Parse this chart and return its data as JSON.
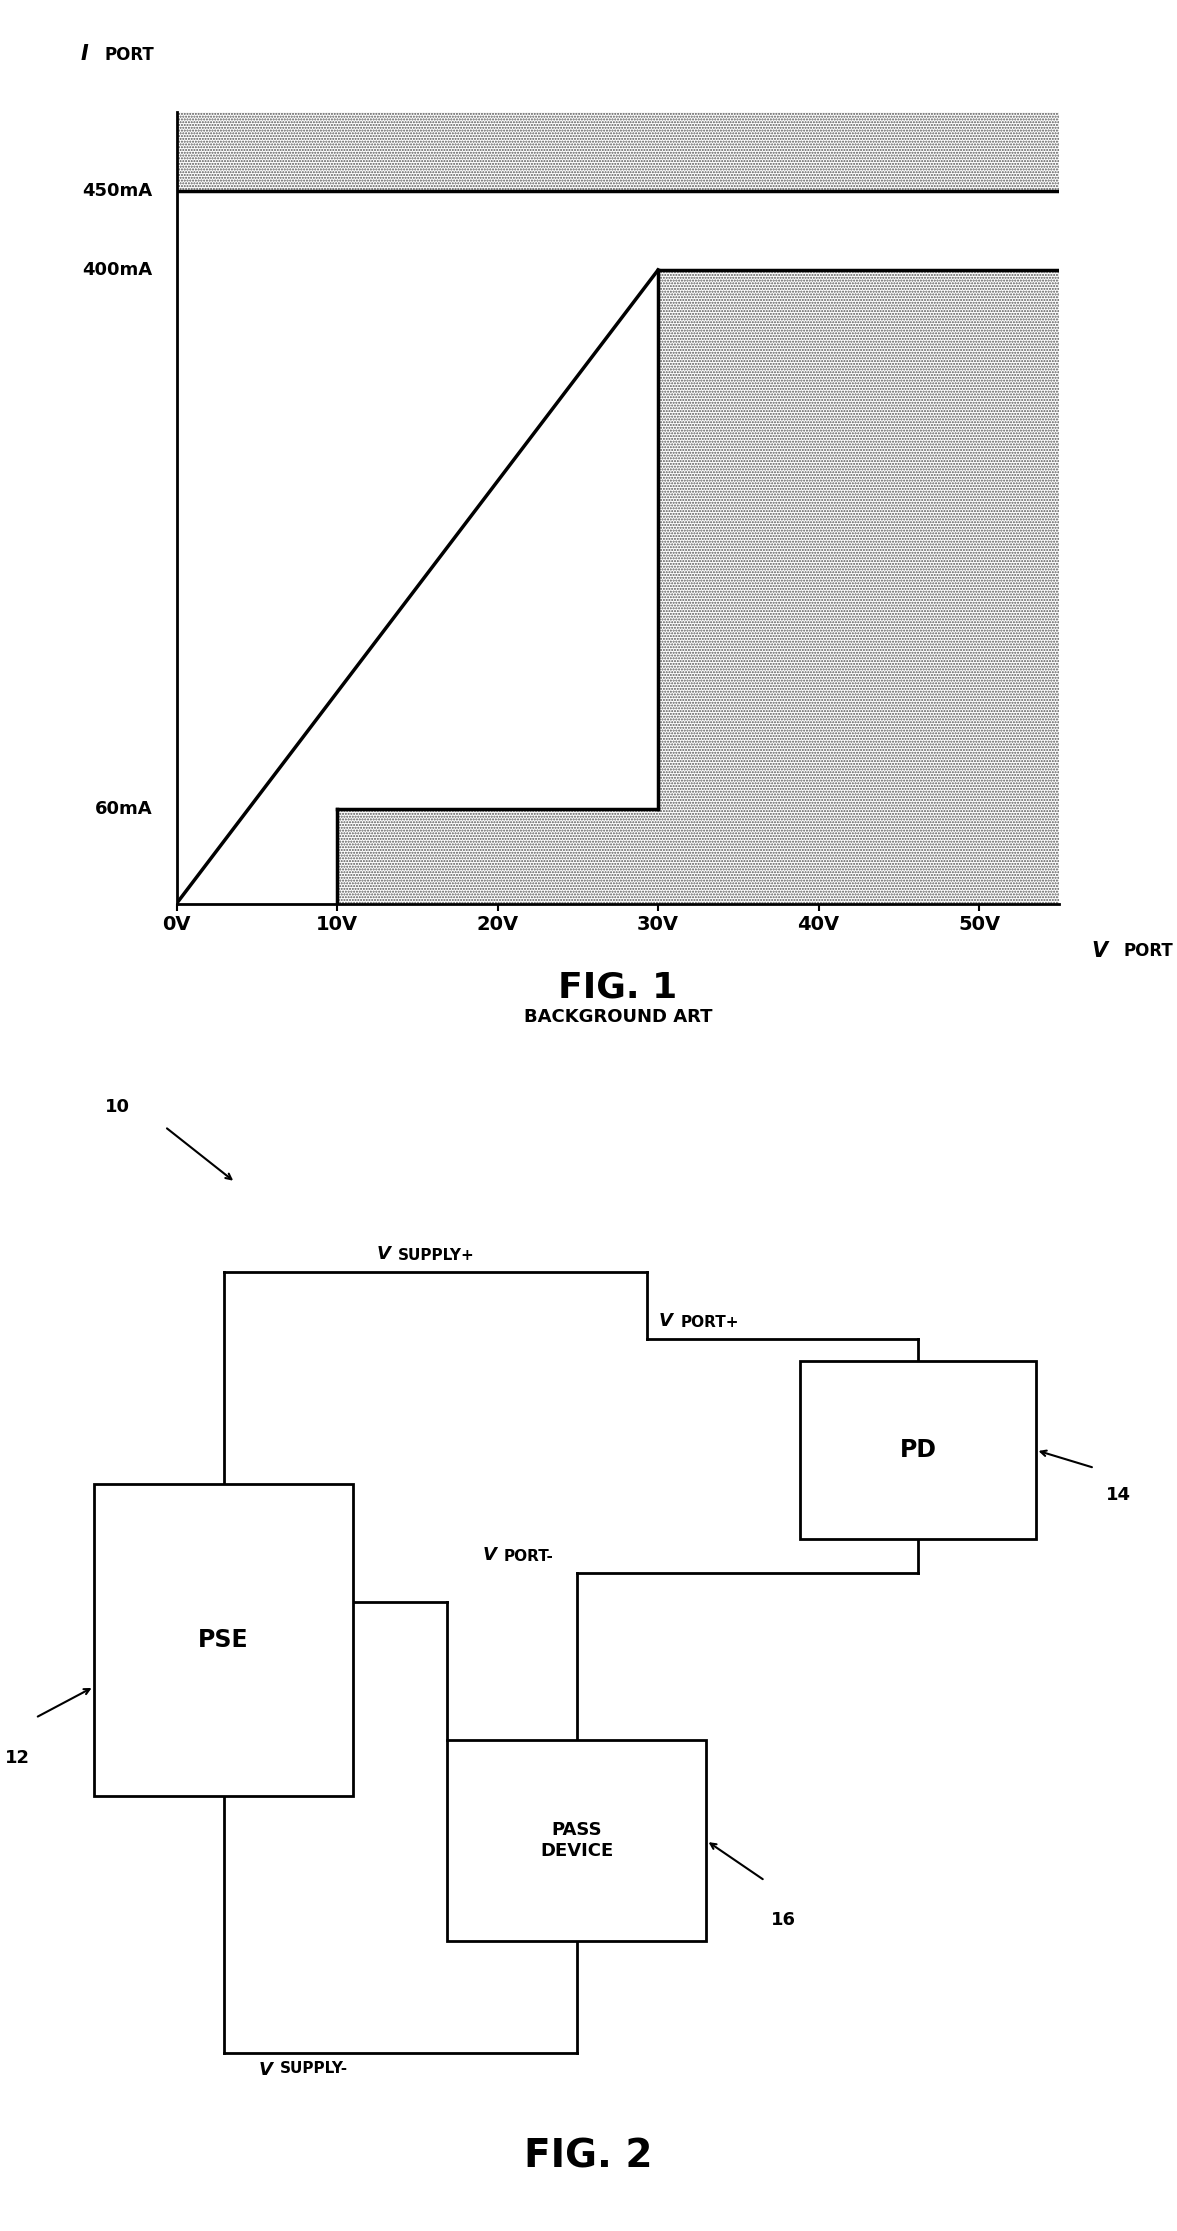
{
  "fig1": {
    "title": "FIG. 1",
    "subtitle": "BACKGROUND ART",
    "xtick_labels": [
      "0V",
      "10V",
      "20V",
      "30V",
      "40V",
      "50V"
    ],
    "ytick_450": 450,
    "ytick_400": 400,
    "ytick_60": 60,
    "xlim": [
      0,
      55
    ],
    "ylim": [
      0,
      500
    ]
  },
  "fig2": {
    "title": "FIG. 2",
    "pse_label": "PSE",
    "pd_label": "PD",
    "pass_device_label": "PASS\nDEVICE",
    "vsupply_plus": "VSUPPLY+",
    "vsupply_minus": "VSUPPLY-",
    "vport_plus": "VPORT+",
    "vport_minus": "VPORT-",
    "label_10": "10",
    "label_12": "12",
    "label_14": "14",
    "label_16": "16"
  }
}
